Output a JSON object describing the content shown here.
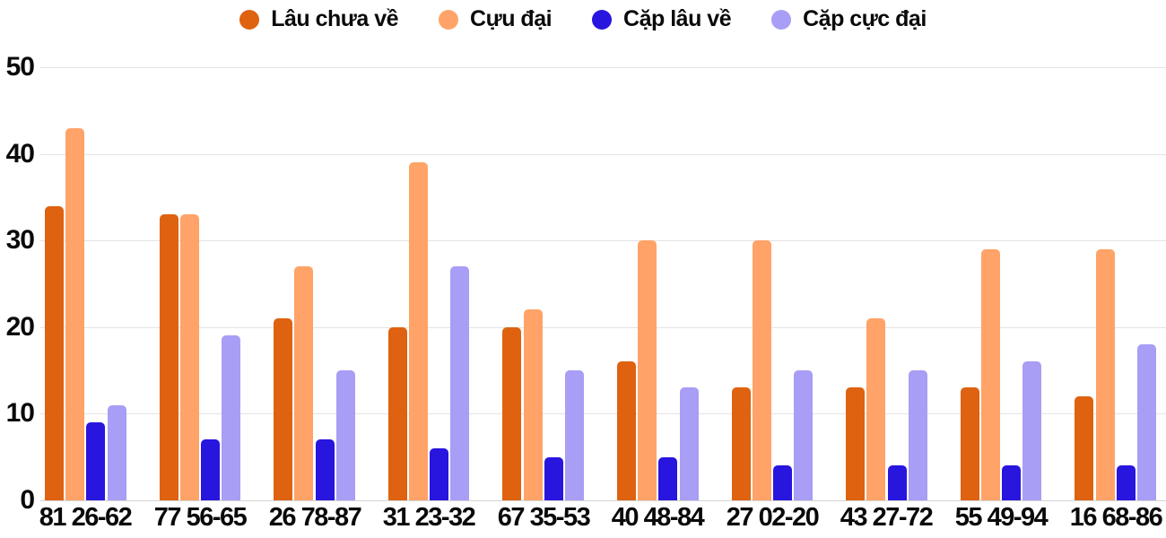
{
  "chart_data": {
    "type": "bar",
    "title": "",
    "xlabel": "",
    "ylabel": "",
    "categories": [
      "81 26-62",
      "77 56-65",
      "26 78-87",
      "31 23-32",
      "67 35-53",
      "40 48-84",
      "27 02-20",
      "43 27-72",
      "55 49-94",
      "16 68-86"
    ],
    "series": [
      {
        "name": "Lâu chưa về",
        "color": "#DE6210",
        "values": [
          34,
          33,
          21,
          20,
          20,
          16,
          13,
          13,
          13,
          12
        ]
      },
      {
        "name": "Cựu đại",
        "color": "#FFA368",
        "values": [
          43,
          33,
          27,
          39,
          22,
          30,
          30,
          21,
          29,
          29
        ]
      },
      {
        "name": "Cặp lâu về",
        "color": "#2815DE",
        "values": [
          9,
          7,
          7,
          6,
          5,
          5,
          4,
          4,
          4,
          4
        ]
      },
      {
        "name": "Cặp cực đại",
        "color": "#A89EF5",
        "values": [
          11,
          19,
          15,
          27,
          15,
          13,
          15,
          15,
          16,
          18
        ]
      }
    ],
    "yticks": [
      0,
      10,
      20,
      30,
      40,
      50
    ],
    "ylim": [
      0,
      50
    ],
    "grid": true,
    "legend_position": "top",
    "background_color": "#ffffff",
    "gridline_color": "#e3e3e3",
    "baseline_color": "#d4d4d4",
    "label_color": "#0a0a0a"
  }
}
